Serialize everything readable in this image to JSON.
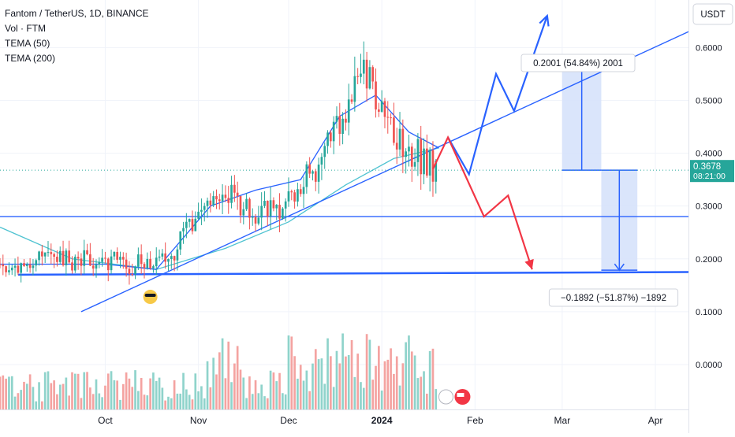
{
  "header": {
    "symbol": "Fantom / TetherUS, 1D, BINANCE",
    "indicators": [
      "Vol · FTM",
      "TEMA (50)",
      "TEMA (200)"
    ]
  },
  "currency_button": "USDT",
  "price_badge": {
    "price": "0.3678",
    "countdown": "08:21:00"
  },
  "annotations": {
    "up_measure": "0.2001 (54.84%) 2001",
    "down_measure": "−0.1892 (−51.87%) −1892"
  },
  "colors": {
    "up": "#26a69a",
    "down": "#ef5350",
    "up_vol": "#8fd3cb",
    "down_vol": "#f4a3a1",
    "drawing": "#2962ff",
    "tema50": "#2962ff",
    "tema200": "#4fc3d1",
    "projection_red": "#f23645",
    "measure_fill": "#d6e2fb"
  },
  "chart_data": {
    "type": "candlestick",
    "title": "Fantom / TetherUS, 1D, BINANCE",
    "y_axis": {
      "ticks": [
        0.0,
        0.1,
        0.2,
        0.3,
        0.4,
        0.5,
        0.6
      ],
      "tick_labels": [
        "0.0000",
        "0.1000",
        "0.2000",
        "0.3000",
        "0.4000",
        "0.5000",
        "0.6000"
      ],
      "range": [
        -0.085,
        0.69
      ]
    },
    "x_axis": {
      "tick_labels": [
        "Oct",
        "Nov",
        "Dec",
        "2024",
        "Feb",
        "Mar",
        "Apr"
      ],
      "tick_dates": [
        "2023-10-01",
        "2023-11-01",
        "2023-12-01",
        "2024-01-01",
        "2024-02-01",
        "2024-03-01",
        "2024-04-01"
      ],
      "range": [
        "2023-08-27",
        "2024-04-12"
      ]
    },
    "last_price": 0.3678,
    "anchors": {
      "dates": [
        "2023-08-27",
        "2023-09-20",
        "2023-10-10",
        "2023-10-20",
        "2023-11-08",
        "2023-11-18",
        "2023-11-30",
        "2023-12-12",
        "2023-12-20",
        "2023-12-26",
        "2024-01-03",
        "2024-01-12",
        "2024-01-19"
      ],
      "closes": [
        0.19,
        0.2,
        0.19,
        0.19,
        0.33,
        0.29,
        0.3,
        0.39,
        0.48,
        0.56,
        0.45,
        0.4,
        0.37
      ]
    },
    "volume_profile": "spiky, highest bars late Nov and mid-Dec, low in Sept",
    "tema50": {
      "dates": [
        "2023-08-27",
        "2023-10-01",
        "2023-10-18",
        "2023-11-05",
        "2023-11-20",
        "2023-12-05",
        "2023-12-18",
        "2023-12-30",
        "2024-01-10",
        "2024-01-20"
      ],
      "values": [
        0.19,
        0.19,
        0.18,
        0.3,
        0.33,
        0.35,
        0.47,
        0.51,
        0.44,
        0.41
      ]
    },
    "tema200": {
      "dates": [
        "2023-08-27",
        "2023-09-20",
        "2023-10-18",
        "2023-11-10",
        "2023-12-01",
        "2023-12-20",
        "2024-01-05",
        "2024-01-20"
      ],
      "values": [
        0.26,
        0.2,
        0.18,
        0.22,
        0.27,
        0.34,
        0.39,
        0.41
      ]
    },
    "trendlines": [
      {
        "name": "rising trendline",
        "from": [
          "2023-09-23",
          0.1
        ],
        "to": [
          "2024-04-12",
          0.63
        ]
      },
      {
        "name": "resistance line",
        "from": [
          "2023-08-27",
          0.28
        ],
        "to": [
          "2024-04-12",
          0.28
        ]
      },
      {
        "name": "support line",
        "from": [
          "2023-09-02",
          0.17
        ],
        "to": [
          "2024-04-12",
          0.175
        ]
      }
    ],
    "projections": [
      {
        "name": "bullish path",
        "points": [
          [
            "2024-01-23",
            0.43
          ],
          [
            "2024-01-30",
            0.36
          ],
          [
            "2024-02-08",
            0.55
          ],
          [
            "2024-02-14",
            0.48
          ],
          [
            "2024-02-25",
            0.66
          ]
        ]
      },
      {
        "name": "bearish path",
        "points": [
          [
            "2024-01-18",
            0.37
          ],
          [
            "2024-01-23",
            0.43
          ],
          [
            "2024-02-04",
            0.28
          ],
          [
            "2024-02-12",
            0.32
          ],
          [
            "2024-02-20",
            0.18
          ]
        ]
      }
    ],
    "measures": [
      {
        "label": "0.2001 (54.84%) 2001",
        "from_value": 0.3678,
        "to_value": 0.5679,
        "date_range": [
          "2024-03-01",
          "2024-03-14"
        ]
      },
      {
        "label": "−0.1892 (−51.87%) −1892",
        "from_value": 0.3678,
        "to_value": 0.1786,
        "date_range": [
          "2024-03-14",
          "2024-03-26"
        ]
      }
    ]
  }
}
